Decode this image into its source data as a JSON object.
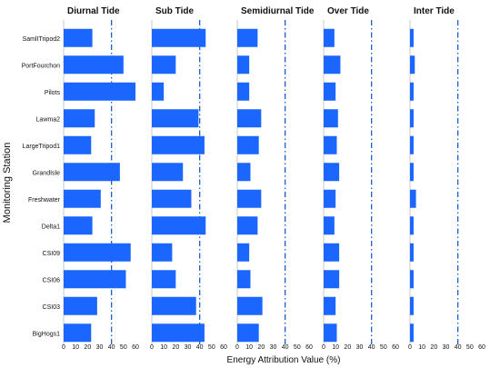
{
  "chart_data": {
    "type": "bar",
    "orientation": "horizontal",
    "ylabel": "Monitoring Station",
    "xlabel": "Energy Attribution Value (%)",
    "categories": [
      "SamlITripod2",
      "PortFourchon",
      "Pilots",
      "Lawma2",
      "LargeTripod1",
      "GrandIsle",
      "Freshwater",
      "Delta1",
      "CSI09",
      "CSI06",
      "CSI03",
      "BigHogs1"
    ],
    "xlim": [
      0,
      60
    ],
    "xticks": [
      0,
      10,
      20,
      30,
      40,
      50,
      60
    ],
    "reference_line": 40,
    "bar_color": "#1a66ff",
    "ref_color": "#1a5fd0",
    "series": [
      {
        "name": "Diurnal Tide",
        "values": [
          24,
          50,
          60,
          26,
          23,
          47,
          31,
          24,
          56,
          52,
          28,
          23
        ]
      },
      {
        "name": "Sub Tide",
        "values": [
          45,
          20,
          10,
          39,
          44,
          26,
          33,
          45,
          17,
          20,
          37,
          44
        ]
      },
      {
        "name": "Semidiurnal Tide",
        "values": [
          17,
          10,
          10,
          20,
          18,
          11,
          20,
          17,
          10,
          11,
          21,
          18
        ]
      },
      {
        "name": "Over Tide",
        "values": [
          9,
          14,
          10,
          12,
          11,
          13,
          10,
          9,
          13,
          13,
          10,
          11
        ]
      },
      {
        "name": "Inter Tide",
        "values": [
          3,
          4,
          3,
          3,
          3,
          3,
          5,
          3,
          3,
          3,
          3,
          3
        ]
      }
    ]
  }
}
